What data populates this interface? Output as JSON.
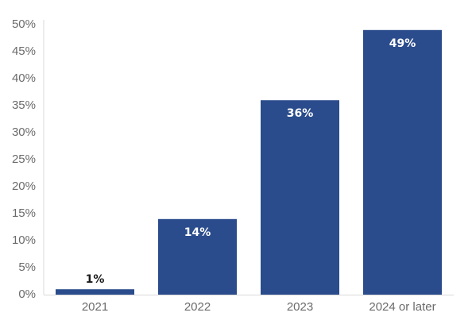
{
  "chart_data": {
    "type": "bar",
    "title": "",
    "xlabel": "",
    "ylabel": "",
    "categories": [
      "2021",
      "2022",
      "2023",
      "2024 or later"
    ],
    "values": [
      1,
      14,
      36,
      49
    ],
    "value_labels": [
      "1%",
      "14%",
      "36%",
      "49%"
    ],
    "ylim": [
      0,
      50
    ],
    "yticks": [
      0,
      5,
      10,
      15,
      20,
      25,
      30,
      35,
      40,
      45,
      50
    ],
    "ytick_labels": [
      "0%",
      "5%",
      "10%",
      "15%",
      "20%",
      "25%",
      "30%",
      "35%",
      "40%",
      "45%",
      "50%"
    ],
    "grid": false,
    "legend": "none",
    "colors": {
      "bar": "#2b4c8c",
      "label_inside": "#ffffff",
      "label_outside": "#1a1a1a",
      "tick_text": "#6b6b6b",
      "axis_line": "#d9d9d9"
    }
  }
}
